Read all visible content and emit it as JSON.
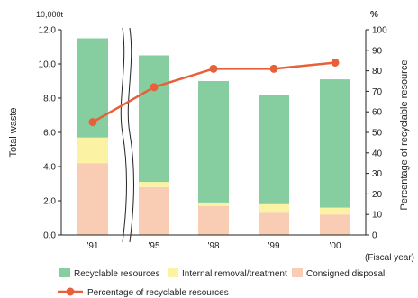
{
  "chart_data": {
    "type": "bar",
    "stacked": true,
    "categories": [
      "'91",
      "'95",
      "'98",
      "'99",
      "'00"
    ],
    "x_suffix_label": "(Fiscal year)",
    "y_left": {
      "label": "Total waste",
      "unit": "10,000t",
      "ylim": [
        0,
        12
      ],
      "ticks": [
        "0.0",
        "2.0",
        "4.0",
        "6.0",
        "8.0",
        "10.0",
        "12.0"
      ]
    },
    "y_right": {
      "label": "Percentage of recyclable resource",
      "unit": "%",
      "ylim": [
        0,
        100
      ],
      "ticks": [
        "0",
        "10",
        "20",
        "30",
        "40",
        "50",
        "60",
        "70",
        "80",
        "90",
        "100"
      ]
    },
    "series": [
      {
        "name": "Consigned disposal",
        "color": "#f9cdb4",
        "values": [
          4.2,
          2.8,
          1.7,
          1.3,
          1.2
        ]
      },
      {
        "name": "Internal removal/treatment",
        "color": "#fbf3a3",
        "values": [
          1.5,
          0.3,
          0.2,
          0.5,
          0.4
        ]
      },
      {
        "name": "Recyclable resources",
        "color": "#86cda0",
        "values": [
          5.8,
          7.4,
          7.1,
          6.4,
          7.5
        ]
      }
    ],
    "line_series": {
      "name": "Percentage of recyclable resources",
      "color": "#e8603a",
      "axis": "right",
      "values": [
        55,
        72,
        81,
        81,
        84
      ]
    },
    "axis_break": "between '91 and '95",
    "grid": false,
    "legend": {
      "placement": "bottom",
      "items": [
        "Recyclable resources",
        "Internal removal/treatment",
        "Consigned disposal",
        "Percentage of recyclable resources"
      ]
    }
  }
}
